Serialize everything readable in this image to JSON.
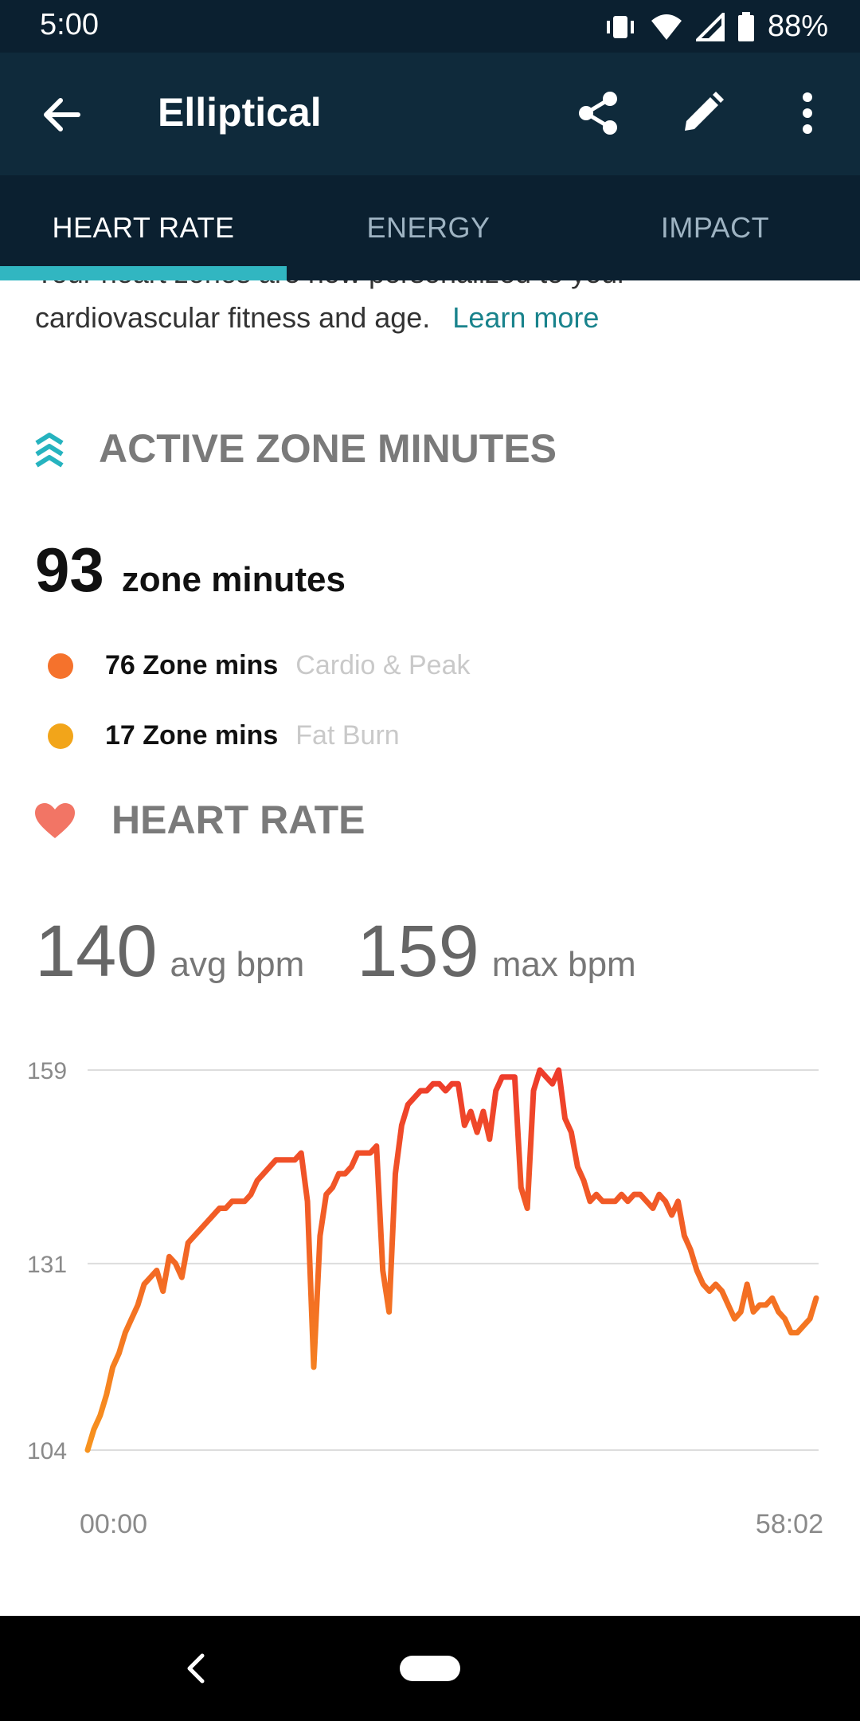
{
  "status": {
    "time": "5:00",
    "battery": "88%"
  },
  "appbar": {
    "title": "Elliptical"
  },
  "tabs": [
    {
      "label": "HEART RATE",
      "active": true
    },
    {
      "label": "ENERGY",
      "active": false
    },
    {
      "label": "IMPACT",
      "active": false
    }
  ],
  "intro": {
    "cut_line": "Your heart zones are now personalized to your",
    "line": "cardiovascular fitness and age.",
    "link": "Learn more"
  },
  "azm": {
    "title": "ACTIVE ZONE MINUTES",
    "total": "93",
    "unit": "zone minutes",
    "zones": [
      {
        "value": "76 Zone mins",
        "name": "Cardio & Peak",
        "color": "#f5722c"
      },
      {
        "value": "17 Zone mins",
        "name": "Fat Burn",
        "color": "#f2a51a"
      }
    ]
  },
  "heart_rate": {
    "title": "HEART RATE",
    "avg": "140",
    "avg_unit": "avg bpm",
    "max": "159",
    "max_unit": "max bpm"
  },
  "chart_data": {
    "type": "line",
    "y_ticks": [
      159,
      131,
      104
    ],
    "x_labels": [
      "00:00",
      "58:02"
    ],
    "ylim": [
      104,
      159
    ],
    "x_start": "00:00",
    "x_end": "58:02",
    "series": [
      {
        "x": [
          0,
          0.5,
          1,
          1.5,
          2,
          2.5,
          3,
          3.5,
          4,
          4.5,
          5,
          5.5,
          6,
          6.5,
          7,
          7.5,
          8,
          8.5,
          9,
          9.5,
          10,
          10.5,
          11,
          11.5,
          12,
          12.5,
          13,
          13.5,
          14,
          14.5,
          15,
          15.5,
          16,
          16.5,
          17,
          17.5,
          18,
          18.5,
          19,
          19.5,
          20,
          20.5,
          21,
          21.5,
          22,
          22.5,
          23,
          23.5,
          24,
          24.5,
          25,
          25.5,
          26,
          26.5,
          27,
          27.5,
          28,
          28.5,
          29,
          29.5,
          30,
          30.5,
          31,
          31.5,
          32,
          32.5,
          33,
          33.5,
          34,
          34.5,
          35,
          35.5,
          36,
          36.5,
          37,
          37.5,
          38,
          38.5,
          39,
          39.5,
          40,
          40.5,
          41,
          41.5,
          42,
          42.5,
          43,
          43.5,
          44,
          44.5,
          45,
          45.5,
          46,
          46.5,
          47,
          47.5,
          48,
          48.5,
          49,
          49.5,
          50,
          50.5,
          51,
          51.5,
          52,
          52.5,
          53,
          53.5,
          54,
          54.5,
          55,
          55.5,
          56,
          56.5,
          57,
          57.5,
          58
        ],
        "y": [
          104,
          107,
          109,
          112,
          116,
          118,
          121,
          123,
          125,
          128,
          129,
          130,
          127,
          132,
          131,
          129,
          134,
          135,
          136,
          137,
          138,
          139,
          139,
          140,
          140,
          140,
          141,
          143,
          144,
          145,
          146,
          146,
          146,
          146,
          147,
          140,
          116,
          135,
          141,
          142,
          144,
          144,
          145,
          147,
          147,
          147,
          148,
          130,
          124,
          144,
          151,
          154,
          155,
          156,
          156,
          157,
          157,
          156,
          157,
          157,
          151,
          153,
          150,
          153,
          149,
          156,
          158,
          158,
          158,
          142,
          139,
          156,
          159,
          158,
          157,
          159,
          152,
          150,
          145,
          143,
          140,
          141,
          140,
          140,
          140,
          141,
          140,
          141,
          141,
          140,
          139,
          141,
          140,
          138,
          140,
          135,
          133,
          130,
          128,
          127,
          128,
          127,
          125,
          123,
          124,
          128,
          124,
          125,
          125,
          126,
          124,
          123,
          121,
          121,
          122,
          123,
          126
        ],
        "color_start": "#f7931e",
        "color_end": "#ee3b2b"
      }
    ]
  }
}
